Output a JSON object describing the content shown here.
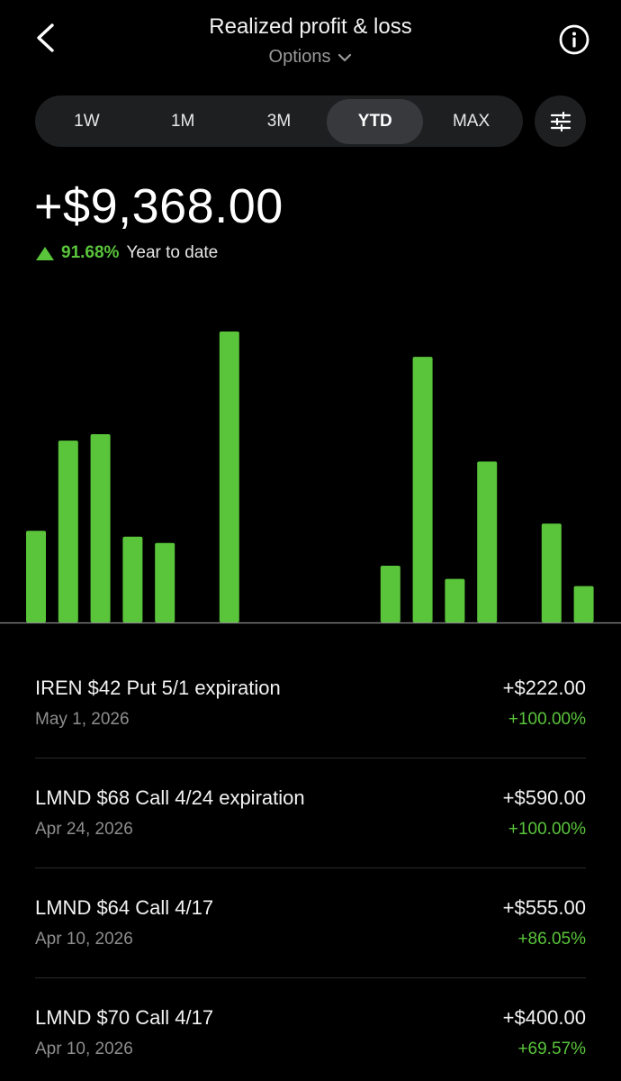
{
  "header": {
    "title": "Realized profit & loss",
    "subtitle": "Options"
  },
  "timeframe": {
    "tabs": [
      "1W",
      "1M",
      "3M",
      "YTD",
      "MAX"
    ],
    "selected": "YTD"
  },
  "summary": {
    "total": "+$9,368.00",
    "percent": "91.68%",
    "period_label": "Year to date"
  },
  "colors": {
    "positive": "#5ac53b",
    "background": "#000000"
  },
  "chart_data": {
    "type": "bar",
    "title": "",
    "xlabel": "",
    "ylabel": "",
    "ylim": [
      0,
      1000
    ],
    "values": [
      315,
      625,
      647,
      295,
      273,
      0,
      1000,
      0,
      0,
      0,
      0,
      195,
      913,
      150,
      553,
      0,
      340,
      125
    ]
  },
  "positions": [
    {
      "name": "IREN $42 Put 5/1 expiration",
      "date": "May 1, 2026",
      "amount": "+$222.00",
      "percent": "+100.00%"
    },
    {
      "name": "LMND $68 Call 4/24 expiration",
      "date": "Apr 24, 2026",
      "amount": "+$590.00",
      "percent": "+100.00%"
    },
    {
      "name": "LMND $64 Call 4/17",
      "date": "Apr 10, 2026",
      "amount": "+$555.00",
      "percent": "+86.05%"
    },
    {
      "name": "LMND $70 Call 4/17",
      "date": "Apr 10, 2026",
      "amount": "+$400.00",
      "percent": "+69.57%"
    }
  ]
}
